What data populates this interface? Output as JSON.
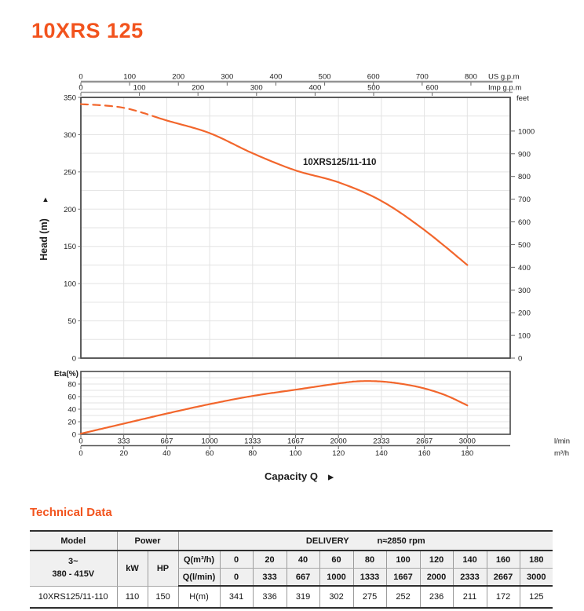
{
  "page": {
    "title": "10XRS 125"
  },
  "colors": {
    "accent": "#f2531d",
    "curve": "#f2662c",
    "grid": "#e3e3e3",
    "box": "#4a4a4a",
    "top_axis_gray": "#949494",
    "tick": "#666666"
  },
  "chart_data": [
    {
      "type": "line",
      "name": "head-capacity-curve",
      "title": "10XRS125/11-110",
      "xlabel": "Capacity Q",
      "ylabel": "Head (m)",
      "xlim": [
        0,
        200
      ],
      "ylim": [
        0,
        350
      ],
      "grid": "on",
      "y_ticks": [
        0,
        50,
        100,
        150,
        200,
        250,
        300,
        350
      ],
      "series": [
        {
          "name": "10XRS125/11-110",
          "x_m3h": [
            0,
            20,
            40,
            60,
            80,
            100,
            120,
            140,
            160,
            180
          ],
          "head_m": [
            341,
            336,
            319,
            302,
            275,
            252,
            236,
            211,
            172,
            125
          ],
          "dashed_below_q": 36
        }
      ],
      "right_axis": {
        "label": "feet",
        "ticks": [
          0,
          100,
          200,
          300,
          400,
          500,
          600,
          700,
          800,
          900,
          1000
        ]
      },
      "top_axis_us": {
        "label": "US g.p.m",
        "ticks": [
          0,
          100,
          200,
          300,
          400,
          500,
          600,
          700,
          800
        ]
      },
      "top_axis_imp": {
        "label": "Imp g.p.m",
        "ticks": [
          0,
          100,
          200,
          300,
          400,
          500,
          600
        ]
      }
    },
    {
      "type": "line",
      "name": "efficiency-curve",
      "ylabel": "Eta(%)",
      "ylim": [
        0,
        100
      ],
      "grid": "on",
      "y_ticks": [
        0,
        20,
        40,
        60,
        80
      ],
      "x_m3h": [
        0,
        20,
        40,
        60,
        80,
        100,
        120,
        130,
        140,
        150,
        160,
        170,
        180
      ],
      "eta_pct": [
        1,
        17,
        33,
        48,
        61,
        71,
        81,
        84.5,
        84,
        80,
        73,
        62,
        46
      ],
      "bottom_axis_lmin": {
        "label": "l/min",
        "ticks": [
          0,
          333,
          667,
          1000,
          1333,
          1667,
          2000,
          2333,
          2667,
          3000
        ]
      },
      "bottom_axis_m3h": {
        "label": "m³/h",
        "ticks": [
          0,
          20,
          40,
          60,
          80,
          100,
          120,
          140,
          160,
          180
        ]
      }
    }
  ],
  "capacity_arrow": "▶",
  "head_axis_arrow": "▲",
  "table": {
    "title": "Technical Data",
    "header": {
      "model": "Model",
      "power": "Power",
      "delivery": "DELIVERY",
      "rpm": "n≈2850 rpm"
    },
    "voltage_line1": "3~",
    "voltage_line2": "380 - 415V",
    "kw_label": "kW",
    "hp_label": "HP",
    "q_m3h_label": "Q(m³/h)",
    "q_lmin_label": "Q(l/min)",
    "h_label": "H(m)",
    "q_m3h": [
      "0",
      "20",
      "40",
      "60",
      "80",
      "100",
      "120",
      "140",
      "160",
      "180"
    ],
    "q_lmin": [
      "0",
      "333",
      "667",
      "1000",
      "1333",
      "1667",
      "2000",
      "2333",
      "2667",
      "3000"
    ],
    "row": {
      "model": "10XRS125/11-110",
      "kw": "110",
      "hp": "150",
      "h": [
        "341",
        "336",
        "319",
        "302",
        "275",
        "252",
        "236",
        "211",
        "172",
        "125"
      ]
    }
  }
}
